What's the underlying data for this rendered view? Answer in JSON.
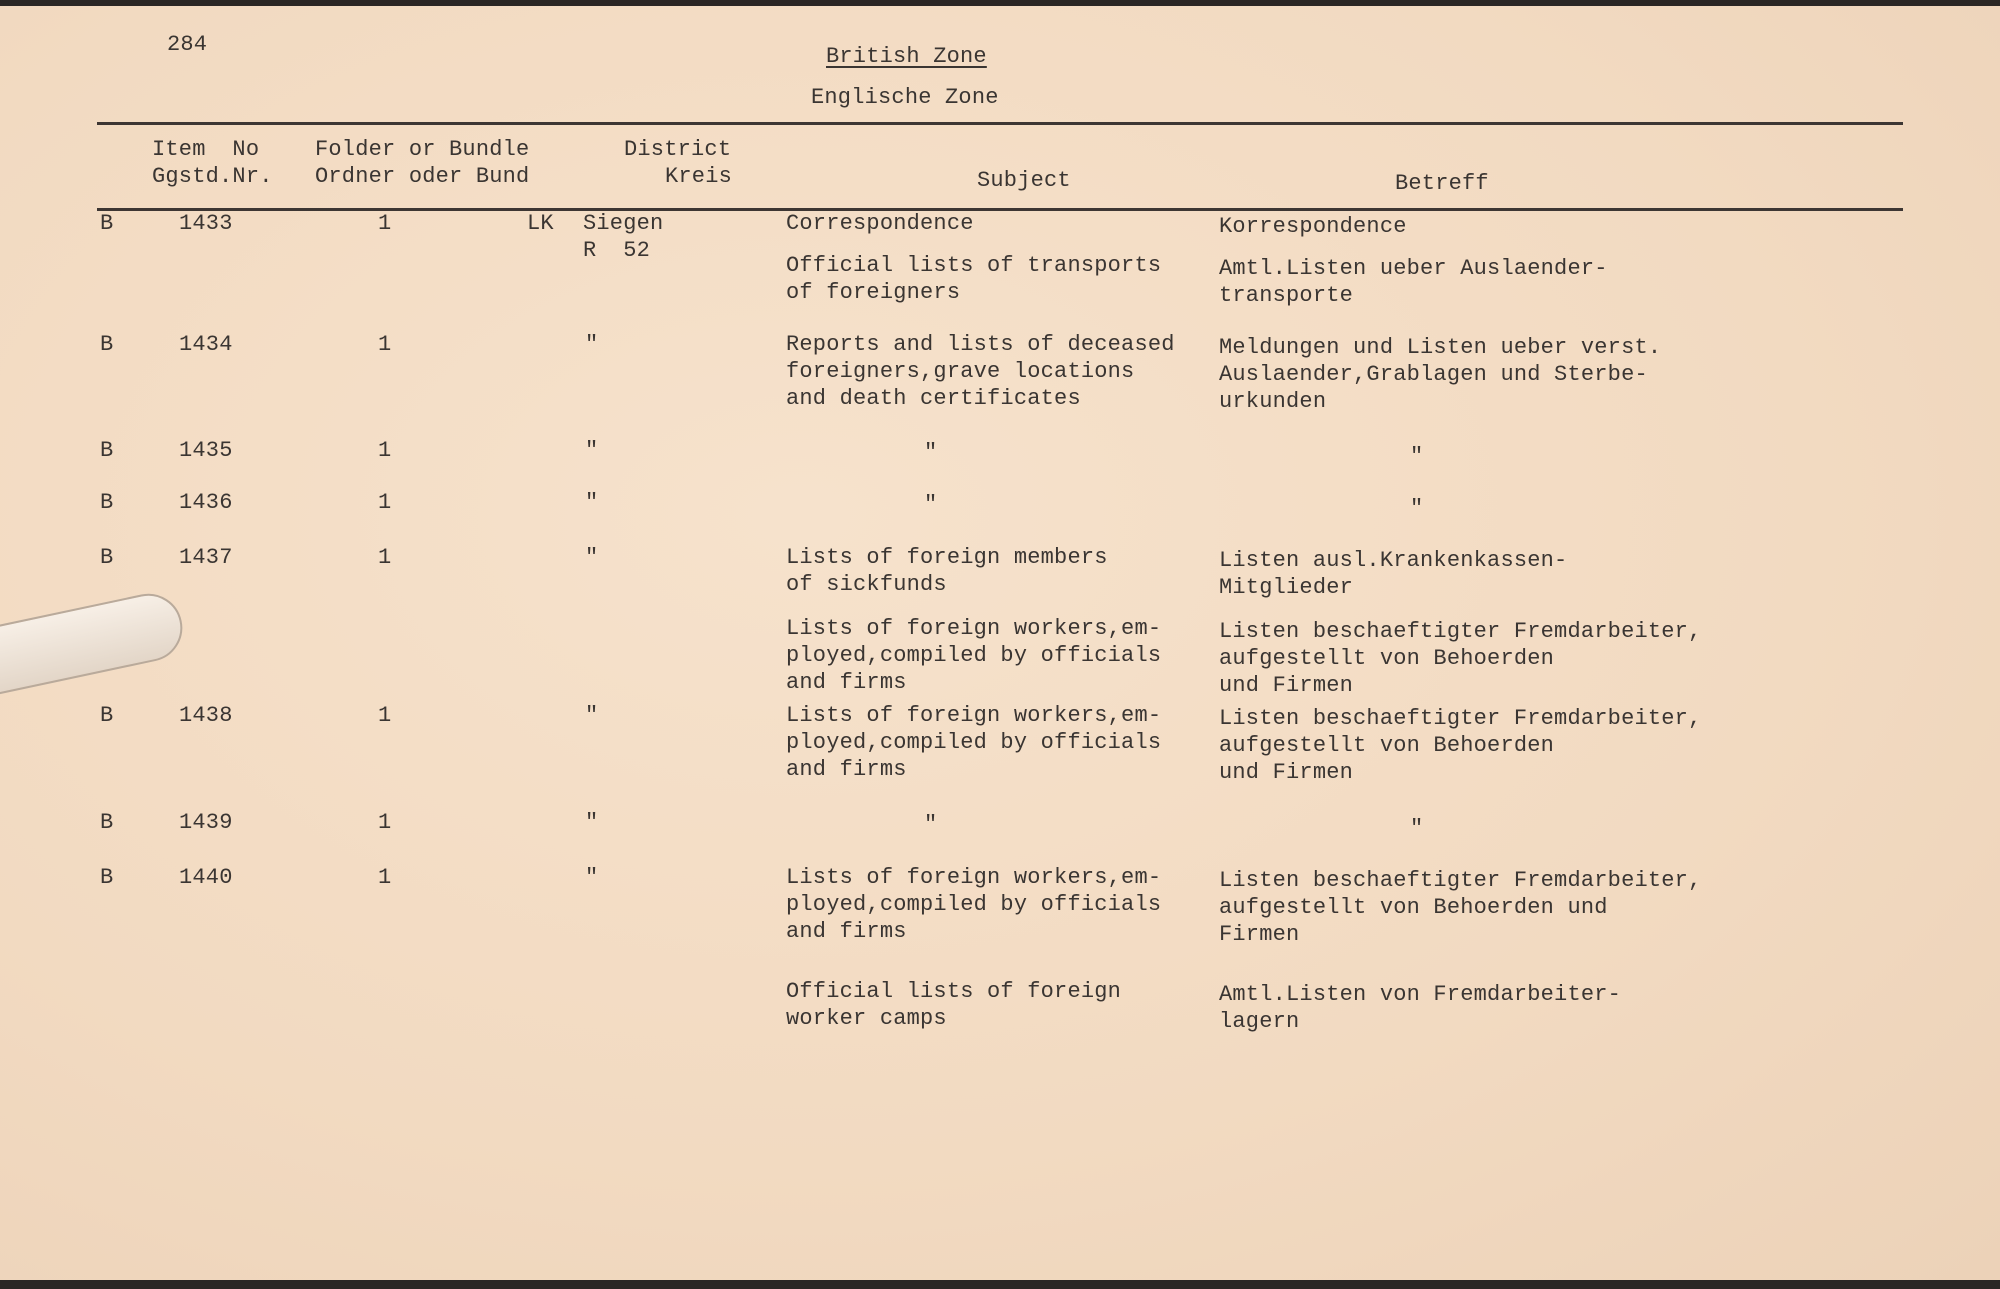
{
  "page_number": "284",
  "title": "British Zone",
  "subtitle": "Englische Zone",
  "headers": {
    "item_1": "Item  No",
    "item_2": "Ggstd.Nr.",
    "folder_1": "Folder or Bundle",
    "folder_2": "Ordner oder Bund",
    "district_1": "District",
    "district_2": "Kreis",
    "subject": "Subject",
    "betreff": "Betreff"
  },
  "rows": [
    {
      "prefix": "B",
      "item": "1433",
      "folder": "1",
      "district_prefix": "LK",
      "district": [
        "Siegen",
        "R  52"
      ],
      "subject": [
        "Correspondence"
      ],
      "betreff": [
        "Korrespondence"
      ]
    },
    {
      "prefix": "",
      "item": "",
      "folder": "",
      "district_prefix": "",
      "district": [],
      "subject": [
        "Official lists of transports",
        "of foreigners"
      ],
      "betreff": [
        "Amtl.Listen ueber Auslaender-",
        "transporte"
      ]
    },
    {
      "prefix": "B",
      "item": "1434",
      "folder": "1",
      "district_prefix": "",
      "district": [
        "\""
      ],
      "subject": [
        "Reports and lists of deceased",
        "foreigners,grave locations",
        "and death certificates"
      ],
      "betreff": [
        "Meldungen und Listen ueber verst.",
        "Auslaender,Grablagen und Sterbe-",
        "urkunden"
      ]
    },
    {
      "prefix": "B",
      "item": "1435",
      "folder": "1",
      "district_prefix": "",
      "district": [
        "\""
      ],
      "subject": [
        "\""
      ],
      "betreff": [
        "\""
      ]
    },
    {
      "prefix": "B",
      "item": "1436",
      "folder": "1",
      "district_prefix": "",
      "district": [
        "\""
      ],
      "subject": [
        "\""
      ],
      "betreff": [
        "\""
      ]
    },
    {
      "prefix": "B",
      "item": "1437",
      "folder": "1",
      "district_prefix": "",
      "district": [
        "\""
      ],
      "subject": [
        "Lists of foreign members",
        "of sickfunds"
      ],
      "betreff": [
        "Listen ausl.Krankenkassen-",
        "Mitglieder"
      ]
    },
    {
      "prefix": "",
      "item": "",
      "folder": "",
      "district_prefix": "",
      "district": [],
      "subject": [
        "Lists of foreign workers,em-",
        "ployed,compiled by officials",
        "and firms"
      ],
      "betreff": [
        "Listen beschaeftigter Fremdarbeiter,",
        "aufgestellt von Behoerden",
        "und Firmen"
      ]
    },
    {
      "prefix": "B",
      "item": "1438",
      "folder": "1",
      "district_prefix": "",
      "district": [
        "\""
      ],
      "subject": [
        "Lists of foreign workers,em-",
        "ployed,compiled by officials",
        "and firms"
      ],
      "betreff": [
        "Listen beschaeftigter Fremdarbeiter,",
        "aufgestellt von Behoerden",
        "und Firmen"
      ]
    },
    {
      "prefix": "B",
      "item": "1439",
      "folder": "1",
      "district_prefix": "",
      "district": [
        "\""
      ],
      "subject": [
        "\""
      ],
      "betreff": [
        "\""
      ]
    },
    {
      "prefix": "B",
      "item": "1440",
      "folder": "1",
      "district_prefix": "",
      "district": [
        "\""
      ],
      "subject": [
        "Lists of foreign workers,em-",
        "ployed,compiled by officials",
        "and firms"
      ],
      "betreff": [
        "Listen beschaeftigter Fremdarbeiter,",
        "aufgestellt von Behoerden und",
        "Firmen"
      ]
    },
    {
      "prefix": "",
      "item": "",
      "folder": "",
      "district_prefix": "",
      "district": [],
      "subject": [
        "Official lists of foreign",
        "worker camps"
      ],
      "betreff": [
        "Amtl.Listen von Fremdarbeiter-",
        "lagern"
      ]
    }
  ]
}
